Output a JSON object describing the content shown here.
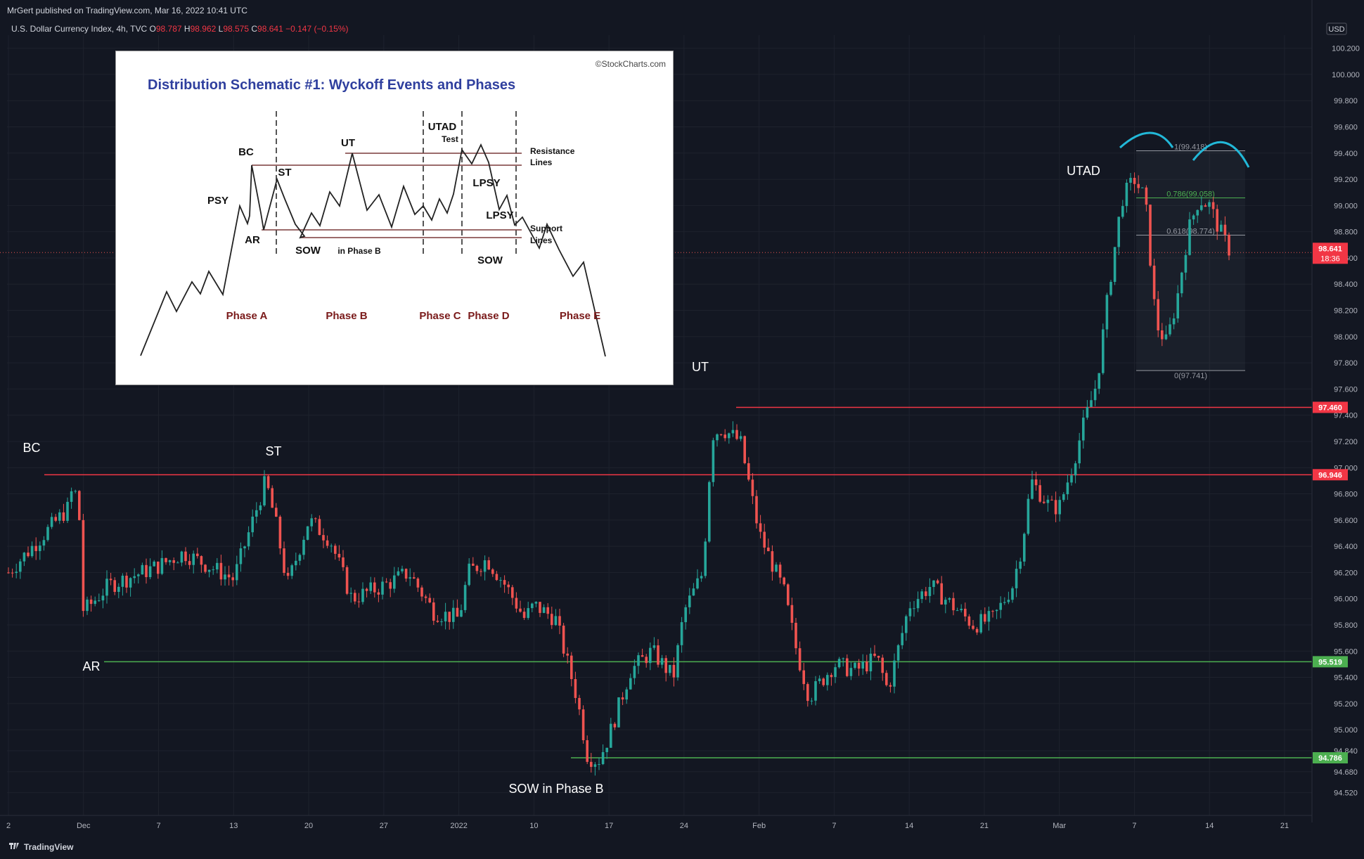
{
  "header": {
    "published": "MrGert published on TradingView.com, Mar 16, 2022 10:41 UTC",
    "symbol": "U.S. Dollar Currency Index, 4h, TVC",
    "o_label": "O",
    "o": "98.787",
    "h_label": "H",
    "h": "98.962",
    "l_label": "L",
    "l": "98.575",
    "c_label": "C",
    "c": "98.641",
    "change": "−0.147 (−0.15%)"
  },
  "footer": {
    "brand": "TradingView"
  },
  "colors": {
    "bg": "#131722",
    "up": "#26a69a",
    "down": "#ef5350",
    "resistance": "#f23645",
    "support": "#4caf50",
    "arc": "#22b8d8",
    "grid": "#1e222d"
  },
  "chart_data": {
    "type": "candlestick",
    "currency": "USD",
    "ylim": [
      94.4,
      100.3
    ],
    "y_ticks": [
      "100.200",
      "100.000",
      "99.800",
      "99.600",
      "99.400",
      "99.200",
      "99.000",
      "98.800",
      "98.600",
      "98.400",
      "98.200",
      "98.000",
      "97.800",
      "97.600",
      "97.400",
      "97.200",
      "97.000",
      "96.800",
      "96.600",
      "96.400",
      "96.200",
      "96.000",
      "95.800",
      "95.600",
      "95.400",
      "95.200",
      "95.000",
      "94.840",
      "94.680",
      "94.520"
    ],
    "x_ticks": [
      "2",
      "Dec",
      "7",
      "13",
      "20",
      "27",
      "2022",
      "10",
      "17",
      "24",
      "Feb",
      "7",
      "14",
      "21",
      "Mar",
      "7",
      "14",
      "21"
    ],
    "path_points": [
      [
        "2",
        96.2
      ],
      [
        "Nov 24",
        96.7
      ],
      [
        "Nov 26",
        96.9
      ],
      [
        "Nov 29",
        96.6
      ],
      [
        "Nov 30",
        96.05
      ],
      [
        "Dec 1",
        95.9
      ],
      [
        "Dec 3",
        96.1
      ],
      [
        "Dec 7",
        96.25
      ],
      [
        "Dec 9",
        96.35
      ],
      [
        "Dec 13",
        96.15
      ],
      [
        "Dec 15",
        96.65
      ],
      [
        "Dec 16",
        96.9
      ],
      [
        "Dec 17",
        96.55
      ],
      [
        "Dec 18",
        96.1
      ],
      [
        "Dec 20",
        96.6
      ],
      [
        "Dec 22",
        96.45
      ],
      [
        "Dec 24",
        96.0
      ],
      [
        "Dec 27",
        96.1
      ],
      [
        "Dec 29",
        96.2
      ],
      [
        "Dec 31",
        95.9
      ],
      [
        "2022",
        95.85
      ],
      [
        "Jan 3",
        96.2
      ],
      [
        "Jan 5",
        96.3
      ],
      [
        "Jan 7",
        96.1
      ],
      [
        "Jan 9",
        95.85
      ],
      [
        "Jan 10",
        95.95
      ],
      [
        "Jan 12",
        95.85
      ],
      [
        "Jan 14",
        95.25
      ],
      [
        "Jan 15",
        94.8
      ],
      [
        "Jan 16",
        94.76
      ],
      [
        "Jan 17",
        94.95
      ],
      [
        "Jan 19",
        95.45
      ],
      [
        "Jan 21",
        95.6
      ],
      [
        "Jan 23",
        95.4
      ],
      [
        "Jan 24",
        95.9
      ],
      [
        "Jan 26",
        96.2
      ],
      [
        "Jan 27",
        97.25
      ],
      [
        "Jan 28",
        97.3
      ],
      [
        "Jan 30",
        97.2
      ],
      [
        "Feb 1",
        96.5
      ],
      [
        "Feb 3",
        96.05
      ],
      [
        "Feb 4",
        95.6
      ],
      [
        "Feb 5",
        95.25
      ],
      [
        "Feb 7",
        95.5
      ],
      [
        "Feb 9",
        95.45
      ],
      [
        "Feb 11",
        95.55
      ],
      [
        "Feb 12",
        95.3
      ],
      [
        "Feb 14",
        95.95
      ],
      [
        "Feb 16",
        96.1
      ],
      [
        "Feb 18",
        95.95
      ],
      [
        "Feb 20",
        95.8
      ],
      [
        "Feb 22",
        95.85
      ],
      [
        "Feb 24",
        96.1
      ],
      [
        "Feb 25",
        96.4
      ],
      [
        "Feb 26",
        96.9
      ],
      [
        "Feb 28",
        96.7
      ],
      [
        "Mar 1",
        96.7
      ],
      [
        "Mar 2",
        97.0
      ],
      [
        "Mar 3",
        97.35
      ],
      [
        "Mar 4",
        97.65
      ],
      [
        "Mar 5",
        98.4
      ],
      [
        "Mar 6",
        99.05
      ],
      [
        "Mar 7",
        99.2
      ],
      [
        "Mar 8",
        99.05
      ],
      [
        "Mar 9",
        98.1
      ],
      [
        "Mar 10",
        97.95
      ],
      [
        "Mar 11",
        98.3
      ],
      [
        "Mar 12",
        98.8
      ],
      [
        "Mar 13",
        99.05
      ],
      [
        "Mar 14",
        99.0
      ],
      [
        "Mar 15",
        98.8
      ],
      [
        "Mar 16",
        98.64
      ]
    ],
    "horizontal_lines": [
      {
        "price": 97.46,
        "label": "97.460",
        "color": "resistance"
      },
      {
        "price": 96.946,
        "label": "96.946",
        "color": "resistance"
      },
      {
        "price": 95.519,
        "label": "95.519",
        "color": "support"
      },
      {
        "price": 94.786,
        "label": "94.786",
        "color": "support"
      }
    ],
    "current_price": {
      "label": "98.641",
      "countdown": "18:36"
    },
    "fib_levels": [
      {
        "label": "1(99.418)",
        "price": 99.418
      },
      {
        "label": "0.786(99.058)",
        "price": 99.058
      },
      {
        "label": "0.618(98.774)",
        "price": 98.774
      },
      {
        "label": "0(97.741)",
        "price": 97.741
      }
    ],
    "annotations": [
      "BC",
      "ST",
      "AR",
      "UT",
      "SOW in Phase B",
      "UTAD"
    ]
  },
  "schematic": {
    "source": "©StockCharts.com",
    "title": "Distribution Schematic #1: Wyckoff Events and Phases",
    "labels": [
      "BC",
      "PSY",
      "AR",
      "ST",
      "UT",
      "SOW",
      "in Phase B",
      "UTAD",
      "Test",
      "LPSY",
      "LPSY",
      "SOW",
      "Resistance",
      "Lines",
      "Support",
      "Lines"
    ],
    "phases": [
      "Phase A",
      "Phase B",
      "Phase C",
      "Phase D",
      "Phase E"
    ]
  }
}
